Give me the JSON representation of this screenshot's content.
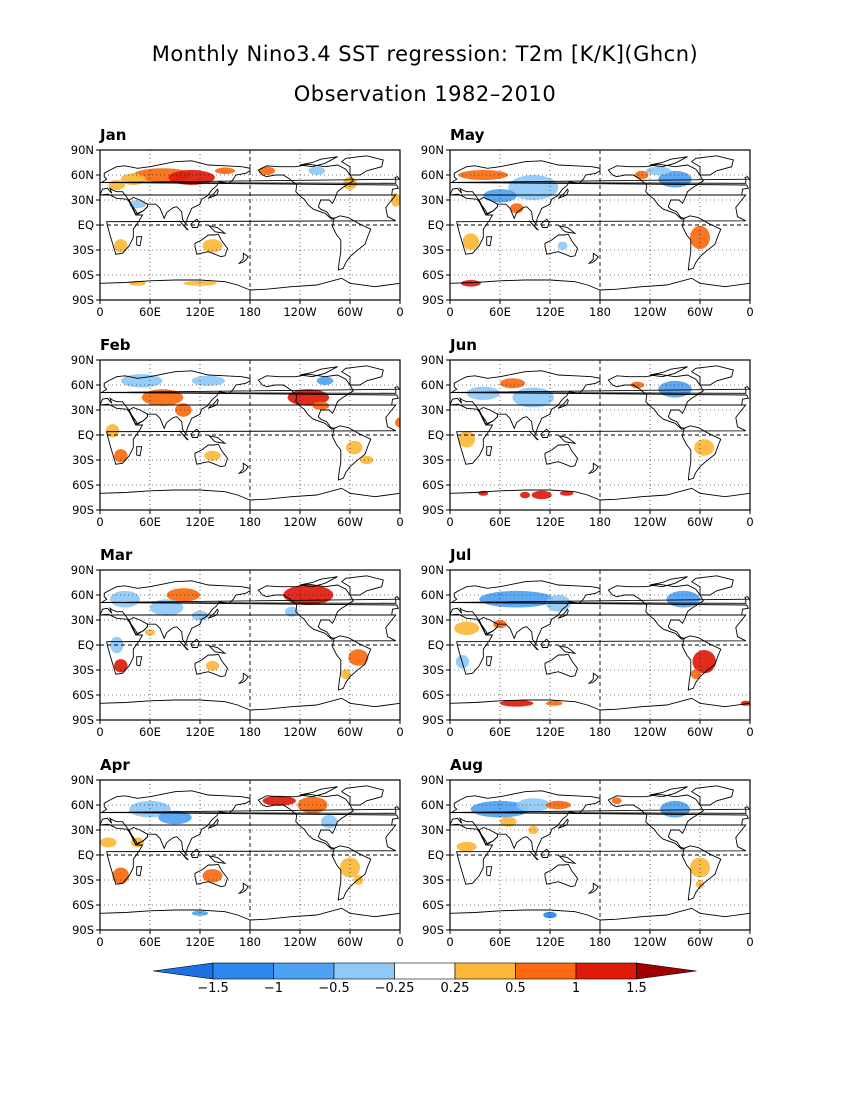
{
  "title_line1": "Monthly Nino3.4 SST regression: T2m [K/K](Ghcn)",
  "title_line2": "Observation 1982–2010",
  "chart_data": [
    {
      "type": "map",
      "panels": [
        {
          "month": "Jan",
          "warm_regions": [
            "Eurasia 50-70N",
            "Alaska",
            "southern Africa",
            "Australia"
          ],
          "cold_regions": [
            "Arabia",
            "northern Canada"
          ]
        },
        {
          "month": "Feb",
          "warm_regions": [
            "North America 30-60N",
            "Asia",
            "southern Africa",
            "Australia",
            "South America"
          ],
          "cold_regions": [
            "northern Eurasia",
            "Arctic Canada"
          ]
        },
        {
          "month": "Mar",
          "warm_regions": [
            "North America",
            "Siberia",
            "southern Africa",
            "South America"
          ],
          "cold_regions": [
            "Europe",
            "central Asia"
          ]
        },
        {
          "month": "Apr",
          "warm_regions": [
            "Alaska",
            "northern Canada",
            "southern Africa",
            "Australia",
            "South America"
          ],
          "cold_regions": [
            "Europe",
            "central Asia",
            "US"
          ]
        },
        {
          "month": "May",
          "warm_regions": [
            "Europe 60N",
            "South America",
            "southern Africa"
          ],
          "cold_regions": [
            "Asia",
            "Canada",
            "Middle East"
          ]
        },
        {
          "month": "Jun",
          "warm_regions": [
            "Siberia",
            "South America",
            "Antarctic coast"
          ],
          "cold_regions": [
            "Asia",
            "Canada"
          ]
        },
        {
          "month": "Jul",
          "warm_regions": [
            "South America",
            "Antarctic coast"
          ],
          "cold_regions": [
            "Eurasia",
            "Canada"
          ]
        },
        {
          "month": "Aug",
          "warm_regions": [
            "South America",
            "central Asia"
          ],
          "cold_regions": [
            "Eurasia",
            "Canada",
            "Antarctica"
          ]
        }
      ],
      "x_ticks": [
        "0",
        "60E",
        "120E",
        "180",
        "120W",
        "60W",
        "0"
      ],
      "y_ticks": [
        "90N",
        "60N",
        "30N",
        "EQ",
        "30S",
        "60S",
        "90S"
      ],
      "xlim": [
        0,
        360
      ],
      "ylim": [
        -90,
        90
      ],
      "reference_lines": [
        "EQ",
        "180"
      ],
      "grid": "dotted 30-degree lines"
    },
    {
      "type": "colorbar",
      "labels": [
        "−1.5",
        "−1",
        "−0.5",
        "−0.25",
        "0.25",
        "0.5",
        "1",
        "1.5"
      ],
      "levels": [
        -1.5,
        -1,
        -0.5,
        -0.25,
        0.25,
        0.5,
        1,
        1.5
      ],
      "colors": [
        "#1e6ee6",
        "#2d88ee",
        "#4ea2f4",
        "#8ec9f8",
        "#ffffff",
        "#fdb83a",
        "#fb6a10",
        "#e01a0a",
        "#a00000"
      ],
      "extend": "both"
    }
  ]
}
